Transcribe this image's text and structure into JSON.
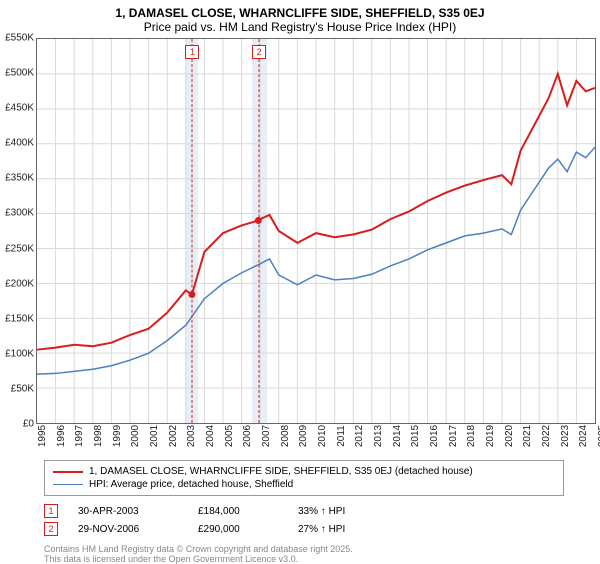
{
  "title_line1": "1, DAMASEL CLOSE, WHARNCLIFFE SIDE, SHEFFIELD, S35 0EJ",
  "title_line2": "Price paid vs. HM Land Registry's House Price Index (HPI)",
  "chart": {
    "type": "line",
    "background_color": "#ffffff",
    "border_color": "#666666",
    "grid_color": "#d9d9d9",
    "ylim": [
      0,
      550000
    ],
    "ytick_step": 50000,
    "ytick_labels": [
      "£0",
      "£50K",
      "£100K",
      "£150K",
      "£200K",
      "£250K",
      "£300K",
      "£350K",
      "£400K",
      "£450K",
      "£500K",
      "£550K"
    ],
    "xlim": [
      1995,
      2025
    ],
    "xtick_step": 1,
    "xtick_labels": [
      "1995",
      "1996",
      "1997",
      "1998",
      "1999",
      "2000",
      "2001",
      "2002",
      "2003",
      "2004",
      "2005",
      "2006",
      "2007",
      "2008",
      "2009",
      "2010",
      "2011",
      "2012",
      "2013",
      "2014",
      "2015",
      "2016",
      "2017",
      "2018",
      "2019",
      "2020",
      "2021",
      "2022",
      "2023",
      "2024",
      "2025"
    ],
    "series": [
      {
        "name_id": "price-paid-series",
        "label": "1, DAMASEL CLOSE, WHARNCLIFFE SIDE, SHEFFIELD, S35 0EJ (detached house)",
        "color": "#d91c1c",
        "line_width": 2,
        "points": [
          [
            1995,
            105000
          ],
          [
            1996,
            108000
          ],
          [
            1997,
            112000
          ],
          [
            1998,
            110000
          ],
          [
            1999,
            115000
          ],
          [
            2000,
            126000
          ],
          [
            2001,
            135000
          ],
          [
            2002,
            158000
          ],
          [
            2003,
            190000
          ],
          [
            2003.33,
            184000
          ],
          [
            2004,
            245000
          ],
          [
            2005,
            272000
          ],
          [
            2006,
            283000
          ],
          [
            2006.9,
            290000
          ],
          [
            2007,
            292000
          ],
          [
            2007.5,
            298000
          ],
          [
            2008,
            275000
          ],
          [
            2009,
            258000
          ],
          [
            2010,
            272000
          ],
          [
            2011,
            266000
          ],
          [
            2012,
            270000
          ],
          [
            2013,
            277000
          ],
          [
            2014,
            292000
          ],
          [
            2015,
            303000
          ],
          [
            2016,
            318000
          ],
          [
            2017,
            330000
          ],
          [
            2018,
            340000
          ],
          [
            2019,
            348000
          ],
          [
            2020,
            355000
          ],
          [
            2020.5,
            342000
          ],
          [
            2021,
            390000
          ],
          [
            2022,
            440000
          ],
          [
            2022.5,
            465000
          ],
          [
            2023,
            500000
          ],
          [
            2023.5,
            455000
          ],
          [
            2024,
            490000
          ],
          [
            2024.5,
            475000
          ],
          [
            2025,
            480000
          ]
        ]
      },
      {
        "name_id": "hpi-series",
        "label": "HPI: Average price, detached house, Sheffield",
        "color": "#4a7fc4",
        "line_width": 1.5,
        "points": [
          [
            1995,
            70000
          ],
          [
            1996,
            71000
          ],
          [
            1997,
            74000
          ],
          [
            1998,
            77000
          ],
          [
            1999,
            82000
          ],
          [
            2000,
            90000
          ],
          [
            2001,
            100000
          ],
          [
            2002,
            118000
          ],
          [
            2003,
            140000
          ],
          [
            2004,
            178000
          ],
          [
            2005,
            200000
          ],
          [
            2006,
            215000
          ],
          [
            2007,
            228000
          ],
          [
            2007.5,
            235000
          ],
          [
            2008,
            212000
          ],
          [
            2009,
            198000
          ],
          [
            2010,
            212000
          ],
          [
            2011,
            205000
          ],
          [
            2012,
            207000
          ],
          [
            2013,
            213000
          ],
          [
            2014,
            225000
          ],
          [
            2015,
            235000
          ],
          [
            2016,
            248000
          ],
          [
            2017,
            258000
          ],
          [
            2018,
            268000
          ],
          [
            2019,
            272000
          ],
          [
            2020,
            278000
          ],
          [
            2020.5,
            270000
          ],
          [
            2021,
            305000
          ],
          [
            2022,
            345000
          ],
          [
            2022.5,
            365000
          ],
          [
            2023,
            378000
          ],
          [
            2023.5,
            360000
          ],
          [
            2024,
            388000
          ],
          [
            2024.5,
            380000
          ],
          [
            2025,
            395000
          ]
        ]
      }
    ],
    "highlight_bands": [
      {
        "start": 2003.0,
        "end": 2003.6,
        "fill": "#e8eef7"
      },
      {
        "start": 2006.5,
        "end": 2007.3,
        "fill": "#e8eef7"
      }
    ],
    "sale_markers": [
      {
        "num": "1",
        "x": 2003.33,
        "y": 184000,
        "color": "#d91c1c"
      },
      {
        "num": "2",
        "x": 2006.9,
        "y": 290000,
        "color": "#d91c1c"
      }
    ]
  },
  "legend": {
    "border_color": "#999999"
  },
  "sales": [
    {
      "num": "1",
      "color": "#d91c1c",
      "date": "30-APR-2003",
      "price": "£184,000",
      "delta": "33% ↑ HPI"
    },
    {
      "num": "2",
      "color": "#d91c1c",
      "date": "29-NOV-2006",
      "price": "£290,000",
      "delta": "27% ↑ HPI"
    }
  ],
  "footer_line1": "Contains HM Land Registry data © Crown copyright and database right 2025.",
  "footer_line2": "This data is licensed under the Open Government Licence v3.0."
}
